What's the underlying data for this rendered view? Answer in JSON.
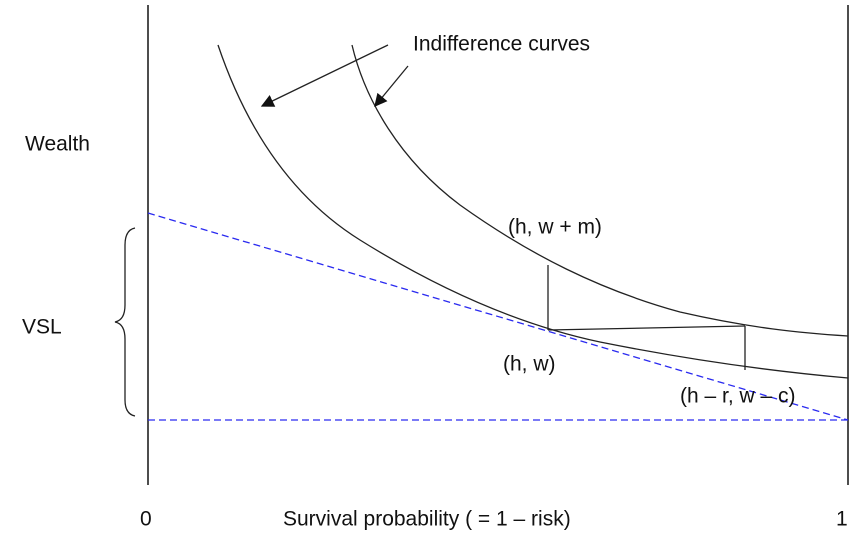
{
  "labels": {
    "y_axis": "Wealth",
    "vsl": "VSL",
    "curves": "Indifference curves",
    "point_upper": "(h, w + m)",
    "point_mid": "(h, w)",
    "point_lower": "(h – r, w – c)",
    "x_start": "0",
    "x_axis": "Survival probability ( = 1 – risk)",
    "x_end": "1"
  }
}
